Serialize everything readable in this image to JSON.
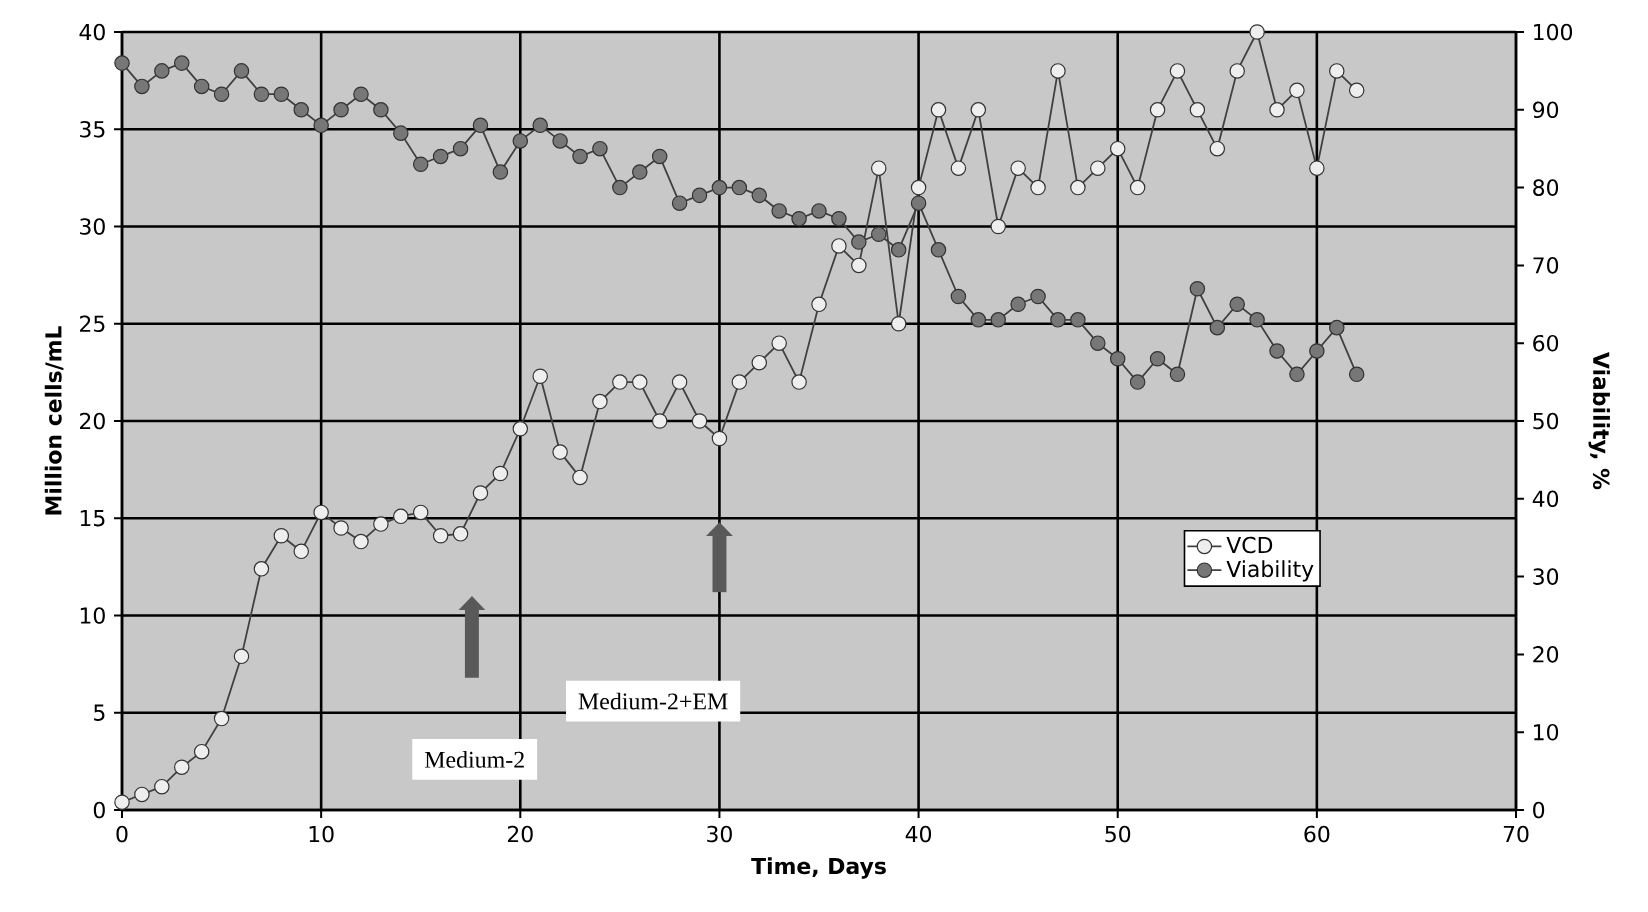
{
  "chart_data": {
    "type": "line",
    "xlabel": "Time, Days",
    "ylabel": "Million cells/mL",
    "y2label": "Viability, %",
    "x": [
      0,
      1,
      2,
      3,
      4,
      5,
      6,
      7,
      8,
      9,
      10,
      11,
      12,
      13,
      14,
      15,
      16,
      17,
      18,
      19,
      20,
      21,
      22,
      23,
      24,
      25,
      26,
      27,
      28,
      29,
      30,
      31,
      32,
      33,
      34,
      35,
      36,
      37,
      38,
      39,
      40,
      41,
      42,
      43,
      44,
      45,
      46,
      47,
      48,
      49,
      50,
      51,
      52,
      53,
      54,
      55,
      56,
      57,
      58,
      59,
      60,
      61,
      62
    ],
    "series": [
      {
        "name": "VCD",
        "color": "#eeeeee",
        "values": [
          0.4,
          0.8,
          1.2,
          2.2,
          3.0,
          4.7,
          7.9,
          12.4,
          14.1,
          13.3,
          15.3,
          14.5,
          13.8,
          14.7,
          15.1,
          15.3,
          14.1,
          14.2,
          16.3,
          17.3,
          19.6,
          22.3,
          18.4,
          17.1,
          21.0,
          22.0,
          22.0,
          20.0,
          22.0,
          20.0,
          19.1,
          22.0,
          23.0,
          24.0,
          22.0,
          26.0,
          29.0,
          28.0,
          33.0,
          25.0,
          32.0,
          36.0,
          33.0,
          36.0,
          30.0,
          33.0,
          32.0,
          38.0,
          32.0,
          33.0,
          34.0,
          32.0,
          36.0,
          38.0,
          36.0,
          34.0,
          38.0,
          40.0,
          36.0,
          37.0,
          33.0,
          38.0,
          37.0
        ]
      },
      {
        "name": "Viability",
        "color": "#777777",
        "axis": "y2",
        "values": [
          96,
          93,
          95,
          96,
          93,
          92,
          95,
          92,
          92,
          90,
          88,
          90,
          92,
          90,
          87,
          83,
          84,
          85,
          88,
          82,
          86,
          88,
          86,
          84,
          85,
          80,
          82,
          84,
          78,
          79,
          80,
          80,
          79,
          77,
          76,
          77,
          76,
          73,
          74,
          72,
          78,
          72,
          66,
          63,
          63,
          65,
          66,
          63,
          63,
          60,
          58,
          55,
          58,
          56,
          67,
          62,
          65,
          63,
          59,
          56,
          59,
          62,
          56
        ]
      }
    ],
    "xlim": [
      0,
      70
    ],
    "xticks": [
      0,
      10,
      20,
      30,
      40,
      50,
      60,
      70
    ],
    "ylim": [
      0,
      40
    ],
    "yticks": [
      0,
      5,
      10,
      15,
      20,
      25,
      30,
      35,
      40
    ],
    "y2lim": [
      0,
      100
    ],
    "y2ticks": [
      0,
      10,
      20,
      30,
      40,
      50,
      60,
      70,
      80,
      90,
      100
    ],
    "annotations": [
      "Medium-2",
      "Medium-2+EM"
    ],
    "legend": "right",
    "grid": true,
    "marker": "circle"
  }
}
